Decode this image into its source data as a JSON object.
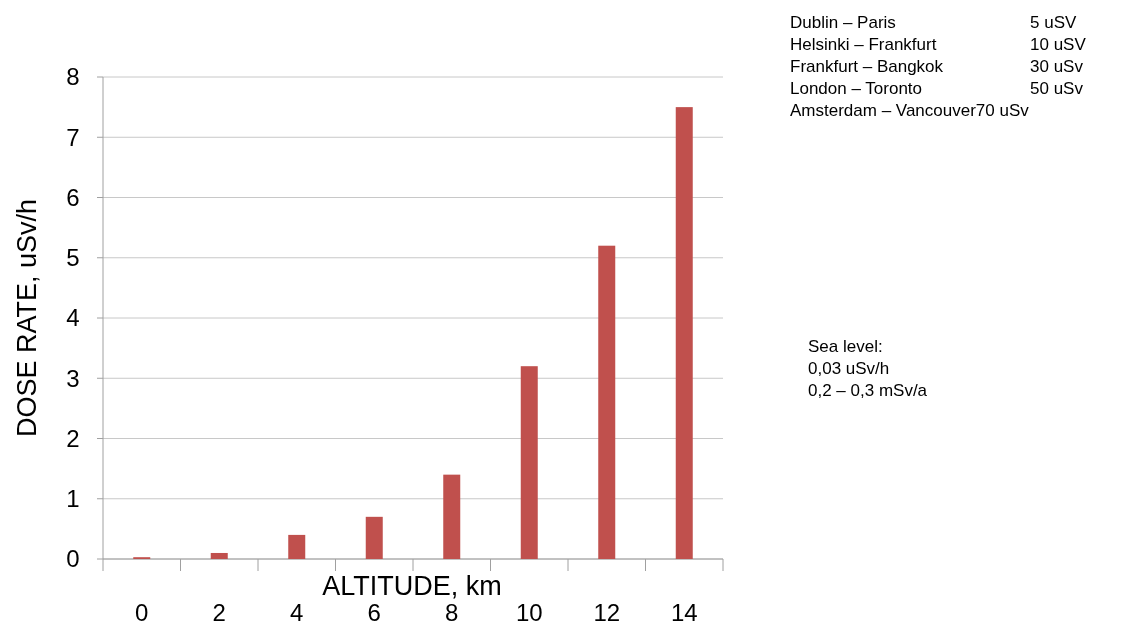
{
  "chart_data": {
    "type": "bar",
    "xlabel": "ALTITUDE, km",
    "ylabel": "DOSE RATE, uSv/h",
    "categories": [
      "0",
      "2",
      "4",
      "6",
      "8",
      "10",
      "12",
      "14"
    ],
    "values": [
      0.03,
      0.1,
      0.4,
      0.7,
      1.4,
      3.2,
      5.2,
      7.5
    ],
    "color": "#c0504d",
    "ylim": [
      0,
      8
    ],
    "yticks": [
      0,
      1,
      2,
      3,
      4,
      5,
      6,
      7,
      8
    ],
    "grid": "y",
    "annotations": [
      "Dublin – Paris\t5 uSV",
      "Helsinki – Frankfurt\t10 uSV",
      "Frankfurt – Bangkok\t30 uSv",
      "London – Toronto\t50 uSv",
      "Amsterdam – Vancouver70 uSv",
      "Sea level:\n0,03 uSv/h\n0,2 – 0,3 mSv/a"
    ]
  }
}
